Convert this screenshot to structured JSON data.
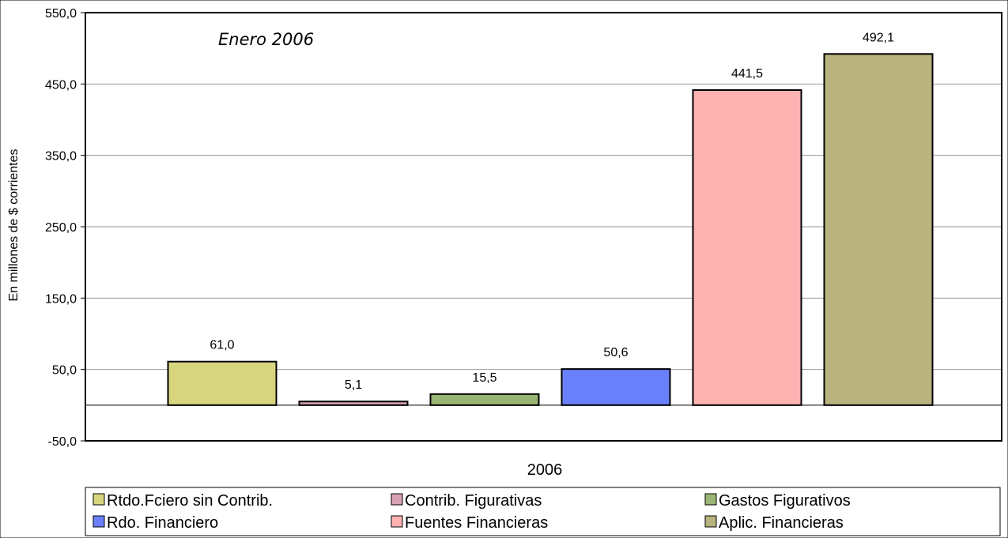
{
  "chart_data": {
    "type": "bar",
    "annotation": "Enero 2006",
    "xlabel": "2006",
    "ylabel": "En millones de $ corrientes",
    "ylim": [
      -50,
      550
    ],
    "yticks": [
      "550,0",
      "450,0",
      "350,0",
      "250,0",
      "150,0",
      "50,0",
      "-50,0"
    ],
    "grid": true,
    "legend_position": "bottom",
    "series": [
      {
        "name": "Rtdo.Fciero sin Contrib.",
        "value": 61.0,
        "label": "61,0",
        "color": "#d7d67e"
      },
      {
        "name": "Contrib. Figurativas",
        "value": 5.1,
        "label": "5,1",
        "color": "#d8a1b4"
      },
      {
        "name": "Gastos Figurativos",
        "value": 15.5,
        "label": "15,5",
        "color": "#9bb674"
      },
      {
        "name": "Rdo. Financiero",
        "value": 50.6,
        "label": "50,6",
        "color": "#6a80fb"
      },
      {
        "name": "Fuentes Financieras",
        "value": 441.5,
        "label": "441,5",
        "color": "#ffb2b2"
      },
      {
        "name": "Aplic. Financieras",
        "value": 492.1,
        "label": "492,1",
        "color": "#b8b37f"
      }
    ]
  }
}
